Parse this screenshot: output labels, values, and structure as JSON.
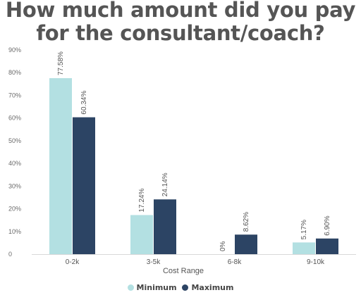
{
  "chart_data": {
    "type": "bar",
    "title": "How much amount did you pay for the consultant/coach?",
    "xlabel": "Cost Range",
    "ylabel": "",
    "ylim": [
      0,
      90
    ],
    "yticks": [
      "0",
      "10%",
      "20%",
      "30%",
      "40%",
      "50%",
      "60%",
      "70%",
      "80%",
      "90%"
    ],
    "categories": [
      "0-2k",
      "3-5k",
      "6-8k",
      "9-10k"
    ],
    "series": [
      {
        "name": "Minimum",
        "color": "#b3e0e2",
        "values": [
          77.58,
          17.24,
          0,
          5.17
        ],
        "labels": [
          "77.58%",
          "17.24%",
          "0%",
          "5.17%"
        ]
      },
      {
        "name": "Maximum",
        "color": "#2c4464",
        "values": [
          60.34,
          24.14,
          8.62,
          6.9
        ],
        "labels": [
          "60.34%",
          "24.14%",
          "8.62%",
          "6.90%"
        ]
      }
    ],
    "grid": false,
    "legend_position": "bottom"
  }
}
